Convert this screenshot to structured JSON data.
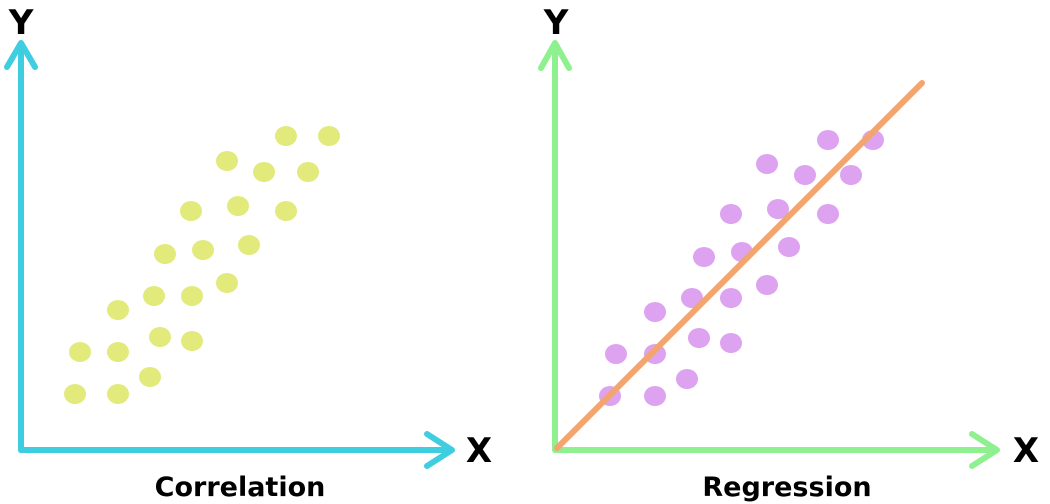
{
  "panels": [
    {
      "caption": "Correlation",
      "y_axis_label": "Y",
      "x_axis_label": "X",
      "axis_color": "#3fcde0",
      "point_color": "#e2ea7c",
      "points": [
        [
          75,
          394
        ],
        [
          118,
          394
        ],
        [
          150,
          377
        ],
        [
          80,
          352
        ],
        [
          118,
          352
        ],
        [
          160,
          337
        ],
        [
          192,
          341
        ],
        [
          118,
          310
        ],
        [
          154,
          296
        ],
        [
          192,
          296
        ],
        [
          227,
          283
        ],
        [
          165,
          254
        ],
        [
          203,
          250
        ],
        [
          249,
          245
        ],
        [
          191,
          211
        ],
        [
          238,
          206
        ],
        [
          286,
          211
        ],
        [
          227,
          161
        ],
        [
          264,
          172
        ],
        [
          308,
          172
        ],
        [
          286,
          136
        ],
        [
          329,
          136
        ]
      ]
    },
    {
      "caption": "Regression",
      "y_axis_label": "Y",
      "x_axis_label": "X",
      "axis_color": "#8ff08f",
      "point_color": "#dda2f0",
      "line_color": "#f2a56f",
      "points": [
        [
          610,
          396
        ],
        [
          655,
          396
        ],
        [
          687,
          379
        ],
        [
          616,
          354
        ],
        [
          655,
          354
        ],
        [
          699,
          338
        ],
        [
          731,
          343
        ],
        [
          655,
          312
        ],
        [
          692,
          298
        ],
        [
          731,
          298
        ],
        [
          767,
          285
        ],
        [
          704,
          257
        ],
        [
          742,
          252
        ],
        [
          789,
          247
        ],
        [
          731,
          214
        ],
        [
          778,
          209
        ],
        [
          828,
          214
        ],
        [
          767,
          164
        ],
        [
          805,
          175
        ],
        [
          851,
          175
        ],
        [
          828,
          140
        ],
        [
          873,
          140
        ]
      ],
      "regression_line": {
        "from": [
          557,
          448
        ],
        "to": [
          922,
          83
        ]
      }
    }
  ]
}
